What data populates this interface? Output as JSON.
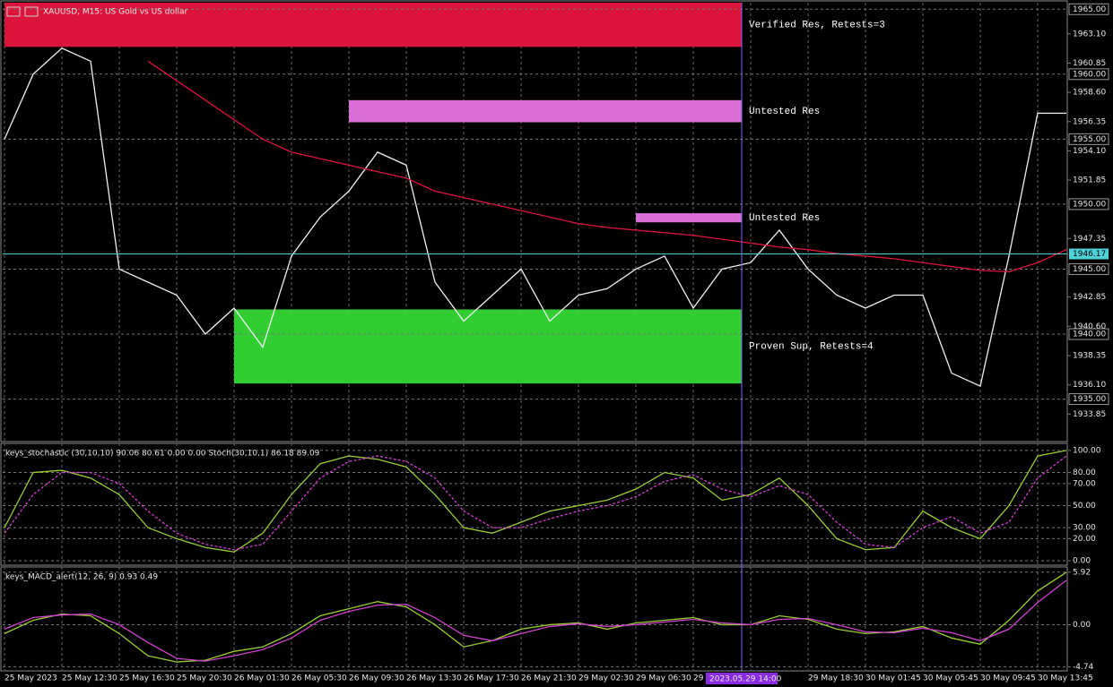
{
  "chart_data": [
    {
      "type": "line",
      "title": "XAUUSD, M15: US Gold vs US dollar",
      "categories": [
        "25 May 2023",
        null,
        "25 May 12:30",
        null,
        "25 May 16:30",
        null,
        "25 May 20:30",
        null,
        "26 May 01:30",
        null,
        "26 May 05:30",
        null,
        "26 May 09:30",
        null,
        "26 May 13:30",
        null,
        "26 May 17:30",
        null,
        "26 May 21:30",
        null,
        "29 May 02:30",
        null,
        "29 May 06:30",
        null,
        "29 M",
        null,
        "14:30",
        null,
        "29 May 18:30",
        null,
        "30 May 01:45",
        null,
        "30 May 05:45",
        null,
        "30 May 09:45",
        null,
        "30 May 13:45",
        null
      ],
      "ylim": [
        1931.8,
        1965.5
      ],
      "yticks": [
        {
          "value": 1963.1,
          "label": "1963.10"
        },
        1960.85,
        {
          "value": 1958.6,
          "label": "1958.60"
        },
        1956.35,
        {
          "value": 1954.1,
          "label": "1954.10"
        },
        1951.85,
        1947.35,
        1942.85,
        {
          "value": 1940.6,
          "label": "1940.60"
        },
        1938.35,
        {
          "value": 1936.1,
          "label": "1936.10"
        },
        1933.85
      ],
      "price_levels": [
        {
          "value": 1965,
          "label": "1965.00"
        },
        {
          "value": 1960,
          "label": "1960.00"
        },
        {
          "value": 1955,
          "label": "1955.00"
        },
        {
          "value": 1950,
          "label": "1950.00"
        },
        {
          "value": 1945,
          "label": "1945.00"
        },
        {
          "value": 1940,
          "label": "1940.00"
        },
        {
          "value": 1935,
          "label": "1935.00"
        }
      ],
      "current_price": 1946.17,
      "crosshair_label": "2023.05.29 14:00",
      "zones": [
        {
          "label": "Verified Res, Retests=3",
          "from": "25 May 2023",
          "low": 1962.1,
          "high": 1965.5,
          "color": "#dc143c"
        },
        {
          "label": "Untested Res",
          "from": "26 May 09:30",
          "low": 1956.3,
          "high": 1958.0,
          "color": "#da70d6"
        },
        {
          "label": "Untested Res",
          "from": "29 May 06:30",
          "low": 1948.6,
          "high": 1949.3,
          "color": "#da70d6"
        },
        {
          "label": "Proven Sup, Retests=4",
          "from": "26 May 01:30",
          "low": 1936.2,
          "high": 1941.9,
          "color": "#32cd32"
        }
      ],
      "series": [
        {
          "color": "#f0f0f0",
          "values": [
            1955,
            1960,
            1962,
            1961,
            1945,
            1944,
            1943,
            1940,
            1942,
            1939,
            1946,
            1949,
            1951,
            1954,
            1953,
            1944,
            1941,
            1943,
            1945,
            1941,
            1943,
            1943.5,
            1945,
            1946,
            1942,
            1945,
            1945.5,
            1948,
            1945,
            1943,
            1942,
            1943,
            1943,
            1937,
            1936,
            1946,
            1957,
            1957
          ]
        },
        {
          "color": "#dc143c",
          "values": [
            null,
            null,
            null,
            null,
            null,
            1961,
            1959.5,
            1958,
            1956.5,
            1955,
            1954,
            1953.5,
            1953,
            1952.5,
            1952,
            1951,
            1950.5,
            1950,
            1949.5,
            1949,
            1948.5,
            1948.2,
            1948,
            1947.8,
            1947.6,
            1947.3,
            1947,
            1946.7,
            1946.5,
            1946.2,
            1946,
            1945.8,
            1945.5,
            1945.2,
            1944.9,
            1944.8,
            1945.5,
            1946.5
          ]
        }
      ]
    },
    {
      "type": "line",
      "title": "keys_stochastic (30,10,10) 90.06 80.61 0.00 0.00 Stoch(30,10,1) 86.18 89.09",
      "ylim": [
        -3.2,
        104.8
      ],
      "yticks": [
        {
          "value": 100,
          "label": "100.00"
        },
        {
          "value": 80,
          "label": "80.00"
        },
        {
          "value": 70,
          "label": "70.00"
        },
        {
          "value": 50,
          "label": "50.00"
        },
        {
          "value": 30,
          "label": "30.00"
        },
        {
          "value": 20,
          "label": "20.00"
        },
        {
          "value": 0,
          "label": "0.00"
        }
      ],
      "series": [
        {
          "color": "#9acd32",
          "values": [
            30,
            80,
            82,
            75,
            60,
            30,
            20,
            12,
            8,
            25,
            60,
            88,
            95,
            92,
            85,
            60,
            30,
            25,
            35,
            45,
            50,
            55,
            65,
            80,
            75,
            55,
            60,
            75,
            50,
            20,
            10,
            12,
            45,
            30,
            20,
            50,
            95,
            100
          ]
        },
        {
          "color": "#d040d0",
          "dash": true,
          "values": [
            25,
            60,
            80,
            80,
            70,
            45,
            25,
            15,
            10,
            15,
            45,
            75,
            90,
            95,
            90,
            75,
            45,
            30,
            30,
            38,
            45,
            50,
            58,
            72,
            78,
            65,
            58,
            68,
            60,
            35,
            15,
            12,
            30,
            40,
            25,
            35,
            75,
            95
          ]
        }
      ]
    },
    {
      "type": "line",
      "title": "keys_MACD_alert(12, 26, 9) 0.93 0.49",
      "ylim": [
        -5.1,
        6.3
      ],
      "yticks": [
        5.92,
        {
          "value": 0,
          "label": "0.00"
        },
        -4.74
      ],
      "series": [
        {
          "color": "#9acd32",
          "values": [
            -1,
            0.5,
            1.2,
            1,
            -1,
            -3.5,
            -4.2,
            -4,
            -3,
            -2.5,
            -1,
            1,
            1.8,
            2.6,
            2,
            0,
            -2.5,
            -1.8,
            -0.5,
            0,
            0.2,
            -0.5,
            0.2,
            0.5,
            0.8,
            0,
            0,
            1,
            0.6,
            -0.5,
            -1,
            -0.8,
            -0.2,
            -1.5,
            -2.2,
            0.5,
            3.8,
            5.9
          ]
        },
        {
          "color": "#d040d0",
          "values": [
            -0.5,
            0.8,
            1.1,
            1.2,
            0,
            -2,
            -3.8,
            -4.1,
            -3.5,
            -2.8,
            -1.5,
            0.5,
            1.5,
            2.2,
            2.3,
            0.8,
            -1.2,
            -1.8,
            -1,
            -0.2,
            0.1,
            -0.2,
            0,
            0.3,
            0.6,
            0.2,
            0,
            0.6,
            0.7,
            0,
            -0.8,
            -0.9,
            -0.4,
            -0.9,
            -1.8,
            -0.5,
            2.5,
            5
          ]
        }
      ]
    }
  ]
}
